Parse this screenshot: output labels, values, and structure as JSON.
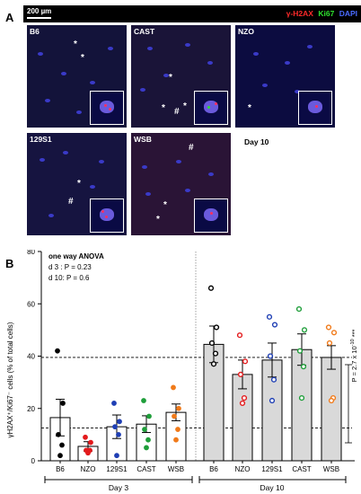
{
  "panel_a": {
    "label": "A",
    "scale_bar": "200 µm",
    "stains": [
      {
        "label": "γ-H2AX",
        "color": "#ff2a2a"
      },
      {
        "label": "Ki67",
        "color": "#2ee02e"
      },
      {
        "label": "DAPI",
        "color": "#4a6bff"
      }
    ],
    "images": [
      {
        "strain": "B6",
        "marks": [
          "*",
          "*"
        ]
      },
      {
        "strain": "CAST",
        "marks": [
          "*",
          "*",
          "#",
          "*"
        ]
      },
      {
        "strain": "NZO",
        "marks": [
          "*"
        ]
      },
      {
        "strain": "129S1",
        "marks": [
          "*",
          "#"
        ]
      },
      {
        "strain": "WSB",
        "marks": [
          "#",
          "*",
          "*"
        ]
      }
    ],
    "day_label": "Day 10"
  },
  "panel_b": {
    "label": "B",
    "anova": {
      "title": "one way ANOVA",
      "line1": "d 3 : P = 0.23",
      "line2": "d 10: P = 0.6"
    },
    "pvalue": "P = 2.7 x 10",
    "pvalue_exp": "-10",
    "pvalue_stars": " ***",
    "day3_label": "Day 3",
    "day10_label": "Day 10"
  },
  "chart_data": {
    "type": "bar",
    "ylabel": "γH2AX⁺/Ki67⁻ cells (% of total cells)",
    "ylim": [
      0,
      80
    ],
    "yticks": [
      0,
      20,
      40,
      60,
      80
    ],
    "categories": [
      "B6",
      "NZO",
      "129S1",
      "CAST",
      "WSB",
      "B6",
      "NZO",
      "129S1",
      "CAST",
      "WSB"
    ],
    "groups": [
      "Day 3",
      "Day 3",
      "Day 3",
      "Day 3",
      "Day 3",
      "Day 10",
      "Day 10",
      "Day 10",
      "Day 10",
      "Day 10"
    ],
    "means": [
      16.5,
      5.5,
      13,
      14,
      18.5,
      44.5,
      33,
      38.5,
      42.5,
      39.5
    ],
    "sem": [
      7,
      1.8,
      4.5,
      3.2,
      3.2,
      7,
      5.5,
      6.5,
      6,
      4.5
    ],
    "points": [
      [
        42,
        22,
        10,
        6,
        2
      ],
      [
        9,
        7,
        4,
        4,
        3
      ],
      [
        22,
        15,
        13,
        10,
        2
      ],
      [
        23,
        17,
        12,
        8,
        5
      ],
      [
        28,
        20,
        17,
        12,
        8
      ]
    ],
    "points_day10": [
      [
        66,
        51,
        45,
        41,
        37
      ],
      [
        48,
        38,
        33,
        24,
        22
      ],
      [
        55,
        52,
        40,
        31,
        23
      ],
      [
        58,
        50,
        42,
        36,
        24
      ],
      [
        51,
        49,
        45,
        24,
        23
      ]
    ],
    "point_colors": [
      "#000000",
      "#e31a1c",
      "#1f3fb4",
      "#1f9e3a",
      "#f07a1a"
    ],
    "day3_bar_color": "#ffffff",
    "day10_bar_color": "#d9d9d9",
    "ref_lines": [
      39.5,
      12.5
    ]
  }
}
